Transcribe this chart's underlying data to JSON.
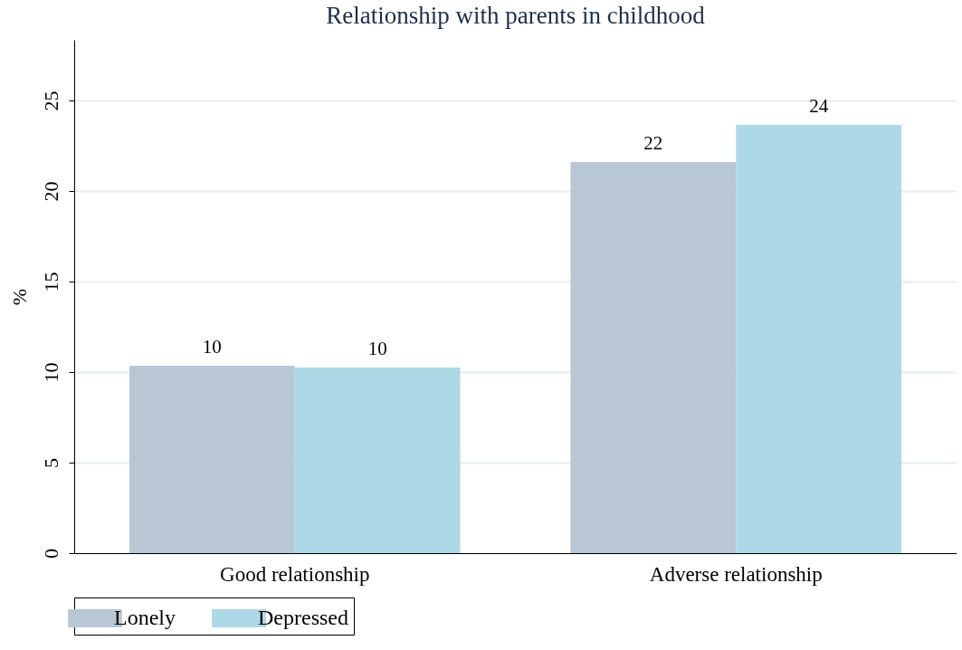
{
  "chart_data": {
    "type": "bar",
    "title": "Relationship with parents in childhood",
    "ylabel": "%",
    "categories": [
      "Good relationship",
      "Adverse relationship"
    ],
    "series": [
      {
        "name": "Lonely",
        "color": "#b8c7d3",
        "values": [
          10.35,
          21.6
        ],
        "value_labels": [
          "10",
          "22"
        ]
      },
      {
        "name": "Depressed",
        "color": "#add8e6",
        "values": [
          10.25,
          23.65
        ],
        "value_labels": [
          "10",
          "24"
        ]
      }
    ],
    "ylim": [
      0,
      28.35
    ],
    "yticks": [
      0,
      5,
      10,
      15,
      20,
      25
    ],
    "grid": "y",
    "legend": "bottom"
  }
}
